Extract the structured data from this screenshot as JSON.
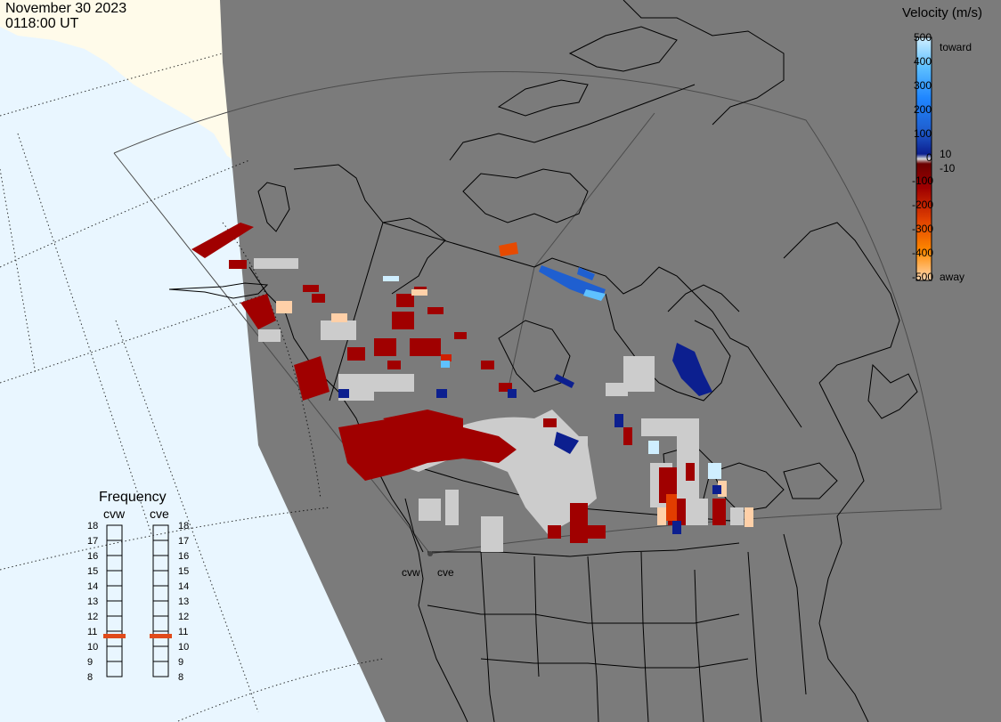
{
  "header": {
    "date": "November 30 2023",
    "time": "0118:00 UT"
  },
  "colors": {
    "ocean": "#e9f6ff",
    "land_daylight": "#fffbea",
    "night": "#7b7b7b",
    "gs_scatter": "#cccccc",
    "coast": "#000000"
  },
  "legend": {
    "title": "Velocity (m/s)",
    "ticks": [
      "500",
      "400",
      "300",
      "200",
      "100",
      "0",
      "-100",
      "-200",
      "-300",
      "-400",
      "-500"
    ],
    "inner_pos": "10",
    "inner_neg": "-10",
    "toward_label": "toward",
    "away_label": "away"
  },
  "frequency": {
    "title": "Frequency",
    "unit_note": "",
    "columns": [
      {
        "station": "cvw",
        "selected": 11
      },
      {
        "station": "cve",
        "selected": 11
      }
    ],
    "levels": [
      "18",
      "17",
      "16",
      "15",
      "14",
      "13",
      "12",
      "11",
      "10",
      "9",
      "8"
    ]
  },
  "stations": {
    "cvw": "cvw",
    "cve": "cve"
  }
}
